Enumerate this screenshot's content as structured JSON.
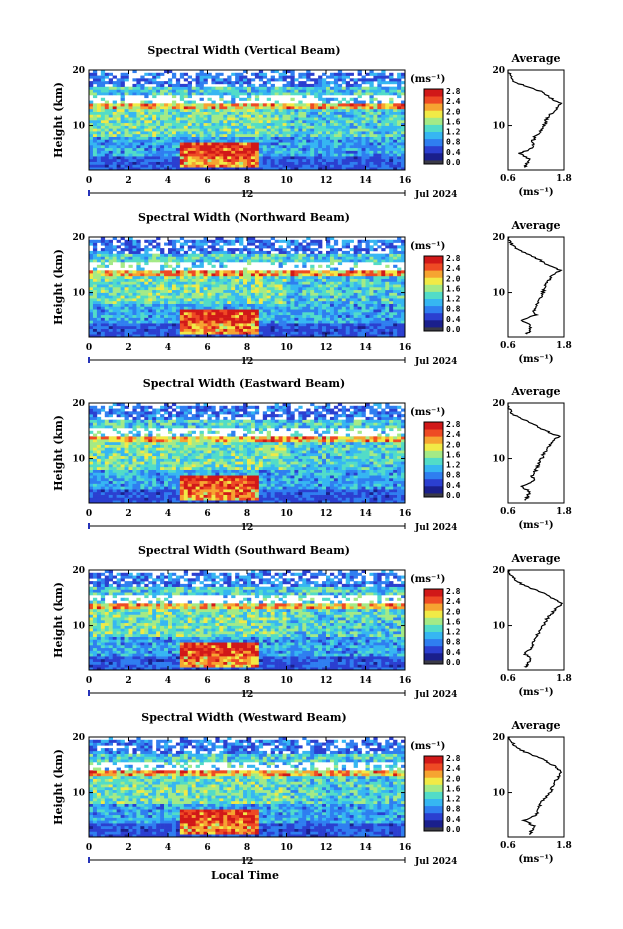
{
  "chart_data": {
    "type": "heatmap",
    "x_axis": {
      "ticks": [
        "0",
        "2",
        "4",
        "6",
        "8",
        "10",
        "12",
        "14",
        "16"
      ],
      "range": [
        0,
        16
      ],
      "day_marker_label": "12",
      "day_marker_hour": 8,
      "date_label": "Jul 2024",
      "label": "Local Time"
    },
    "y_axis": {
      "label": "Height (km)",
      "ticks": [
        "20",
        "10"
      ],
      "range": [
        2,
        20
      ]
    },
    "colorbar": {
      "unit": "(ms⁻¹)",
      "ticks": [
        "2.8",
        "2.4",
        "2.0",
        "1.6",
        "1.2",
        "0.8",
        "0.4",
        "0.0"
      ],
      "range": [
        0.0,
        2.8
      ],
      "colors": [
        "#1a1f8c",
        "#2b3fd0",
        "#2f7ef0",
        "#36b6f2",
        "#52dcc8",
        "#a4ea86",
        "#f1ea46",
        "#f6a431",
        "#ee4a24",
        "#d11818"
      ]
    },
    "profile": {
      "title": "Average",
      "x_ticks": [
        "0.6",
        "1.8"
      ],
      "x_range": [
        0.6,
        1.8
      ],
      "unit": "(ms⁻¹)",
      "y_ticks": [
        "20",
        "10"
      ]
    },
    "panels": [
      {
        "title": "Spectral Width (Vertical Beam)",
        "profile": [
          [
            2.5,
            0.95
          ],
          [
            3,
            1.0
          ],
          [
            4,
            1.05
          ],
          [
            5,
            0.85
          ],
          [
            6,
            1.15
          ],
          [
            7,
            1.12
          ],
          [
            8,
            1.18
          ],
          [
            9,
            1.3
          ],
          [
            10,
            1.38
          ],
          [
            11,
            1.42
          ],
          [
            12,
            1.5
          ],
          [
            13,
            1.65
          ],
          [
            14,
            1.72
          ],
          [
            15,
            1.5
          ],
          [
            16,
            1.35
          ],
          [
            17,
            1.0
          ],
          [
            18,
            0.7
          ],
          [
            19,
            0.65
          ],
          [
            20,
            0.6
          ]
        ]
      },
      {
        "title": "Spectral Width (Northward Beam)",
        "profile": [
          [
            2.5,
            1.0
          ],
          [
            3,
            1.05
          ],
          [
            4,
            1.1
          ],
          [
            5,
            0.9
          ],
          [
            6,
            1.2
          ],
          [
            7,
            1.15
          ],
          [
            8,
            1.22
          ],
          [
            9,
            1.28
          ],
          [
            10,
            1.35
          ],
          [
            11,
            1.4
          ],
          [
            12,
            1.45
          ],
          [
            13,
            1.55
          ],
          [
            14,
            1.72
          ],
          [
            15,
            1.45
          ],
          [
            16,
            1.25
          ],
          [
            17,
            1.0
          ],
          [
            18,
            0.75
          ],
          [
            19,
            0.65
          ],
          [
            20,
            0.6
          ]
        ]
      },
      {
        "title": "Spectral Width (Eastward Beam)",
        "profile": [
          [
            2.5,
            0.98
          ],
          [
            3,
            1.0
          ],
          [
            4,
            1.08
          ],
          [
            5,
            0.88
          ],
          [
            6,
            1.15
          ],
          [
            7,
            1.12
          ],
          [
            8,
            1.2
          ],
          [
            9,
            1.25
          ],
          [
            10,
            1.32
          ],
          [
            11,
            1.38
          ],
          [
            12,
            1.45
          ],
          [
            13,
            1.55
          ],
          [
            14,
            1.7
          ],
          [
            15,
            1.4
          ],
          [
            16,
            1.2
          ],
          [
            17,
            0.95
          ],
          [
            18,
            0.7
          ],
          [
            19,
            0.62
          ],
          [
            20,
            0.6
          ]
        ]
      },
      {
        "title": "Spectral Width (Southward Beam)",
        "profile": [
          [
            2.5,
            1.0
          ],
          [
            3,
            1.02
          ],
          [
            4,
            1.08
          ],
          [
            5,
            0.95
          ],
          [
            6,
            1.12
          ],
          [
            7,
            1.15
          ],
          [
            8,
            1.2
          ],
          [
            9,
            1.28
          ],
          [
            10,
            1.35
          ],
          [
            11,
            1.42
          ],
          [
            12,
            1.52
          ],
          [
            13,
            1.62
          ],
          [
            14,
            1.75
          ],
          [
            15,
            1.55
          ],
          [
            16,
            1.3
          ],
          [
            17,
            1.0
          ],
          [
            18,
            0.78
          ],
          [
            19,
            0.66
          ],
          [
            20,
            0.6
          ]
        ]
      },
      {
        "title": "Spectral Width (Westward Beam)",
        "profile": [
          [
            2.5,
            1.05
          ],
          [
            3,
            1.1
          ],
          [
            4,
            1.15
          ],
          [
            5,
            0.95
          ],
          [
            6,
            1.2
          ],
          [
            7,
            1.25
          ],
          [
            8,
            1.3
          ],
          [
            9,
            1.4
          ],
          [
            10,
            1.5
          ],
          [
            11,
            1.55
          ],
          [
            12,
            1.6
          ],
          [
            13,
            1.7
          ],
          [
            14,
            1.72
          ],
          [
            15,
            1.55
          ],
          [
            16,
            1.35
          ],
          [
            17,
            1.05
          ],
          [
            18,
            0.8
          ],
          [
            19,
            0.68
          ],
          [
            20,
            0.62
          ]
        ]
      }
    ]
  }
}
